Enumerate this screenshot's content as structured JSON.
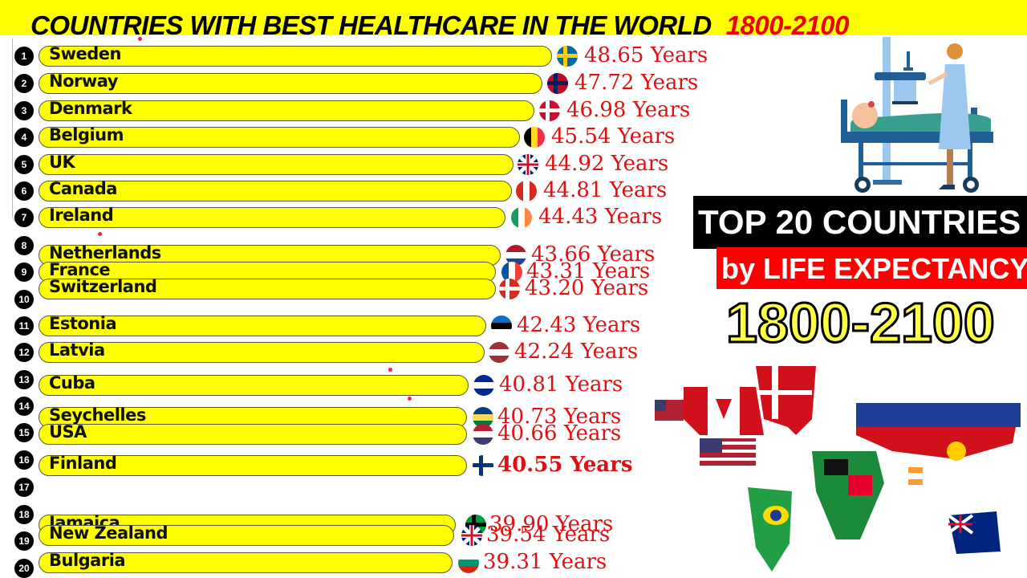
{
  "header": {
    "title": "COUNTRIES WITH BEST HEALTHCARE IN THE WORLD",
    "year_range": "1800-2100"
  },
  "side_panel": {
    "line1": "TOP 20 COUNTRIES",
    "line2": "by LIFE EXPECTANCY",
    "line3": "1800-2100",
    "illustration": "patient-bed-nurse-illustration",
    "map": "world-flag-map"
  },
  "colors": {
    "bar": "#ffff00",
    "value_text": "#dd1111",
    "title_bg": "#ffff00",
    "title_accent": "#ee0000"
  },
  "rows": [
    {
      "rank": "1",
      "country": "Sweden",
      "value": "48.65 Years"
    },
    {
      "rank": "2",
      "country": "Norway",
      "value": "47.72 Years"
    },
    {
      "rank": "3",
      "country": "Denmark",
      "value": "46.98 Years"
    },
    {
      "rank": "4",
      "country": "Belgium",
      "value": "45.54 Years"
    },
    {
      "rank": "5",
      "country": "UK",
      "value": "44.92 Years"
    },
    {
      "rank": "6",
      "country": "Canada",
      "value": "44.81 Years"
    },
    {
      "rank": "7",
      "country": "Ireland",
      "value": "44.43 Years"
    },
    {
      "rank": "8",
      "country": "Netherlands",
      "value": "43.66 Years"
    },
    {
      "rank": "9",
      "country": "France",
      "value": "43.31 Years"
    },
    {
      "rank": "10",
      "country": "Switzerland",
      "value": "43.20 Years"
    },
    {
      "rank": "11",
      "country": "Estonia",
      "value": "42.43 Years"
    },
    {
      "rank": "12",
      "country": "Latvia",
      "value": "42.24 Years"
    },
    {
      "rank": "13",
      "country": "Cuba",
      "value": "40.81 Years"
    },
    {
      "rank": "14",
      "country": "Seychelles",
      "value": "40.73 Years"
    },
    {
      "rank": "15",
      "country": "USA",
      "value": "40.66 Years"
    },
    {
      "rank": "16",
      "country": "Finland",
      "value": "40.55 Years"
    },
    {
      "rank": "17",
      "country": "",
      "value": ""
    },
    {
      "rank": "18",
      "country": "Jamaica",
      "value": "39.90 Years"
    },
    {
      "rank": "19",
      "country": "New Zealand",
      "value": "39.54 Years"
    },
    {
      "rank": "20",
      "country": "Bulgaria",
      "value": "39.31 Years"
    }
  ],
  "chart_data": {
    "type": "bar",
    "orientation": "horizontal",
    "title": "COUNTRIES WITH BEST HEALTHCARE IN THE WORLD 1800-2100",
    "subtitle": "TOP 20 COUNTRIES by LIFE EXPECTANCY 1800-2100",
    "xlabel": "",
    "ylabel": "",
    "unit": "Years",
    "categories": [
      "Sweden",
      "Norway",
      "Denmark",
      "Belgium",
      "UK",
      "Canada",
      "Ireland",
      "Netherlands",
      "France",
      "Switzerland",
      "Estonia",
      "Latvia",
      "Cuba",
      "Seychelles",
      "USA",
      "Finland",
      "Jamaica",
      "New Zealand",
      "Bulgaria"
    ],
    "values": [
      48.65,
      47.72,
      46.98,
      45.54,
      44.92,
      44.81,
      44.43,
      43.66,
      43.31,
      43.2,
      42.43,
      42.24,
      40.81,
      40.73,
      40.66,
      40.55,
      39.9,
      39.54,
      39.31
    ],
    "grid": false,
    "legend": "none"
  }
}
